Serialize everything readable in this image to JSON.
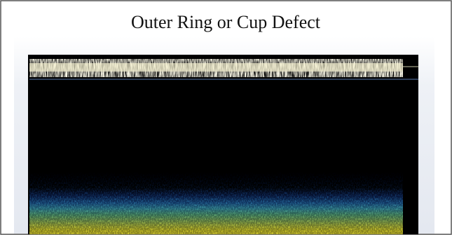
{
  "title": "Outer Ring or Cup Defect"
}
